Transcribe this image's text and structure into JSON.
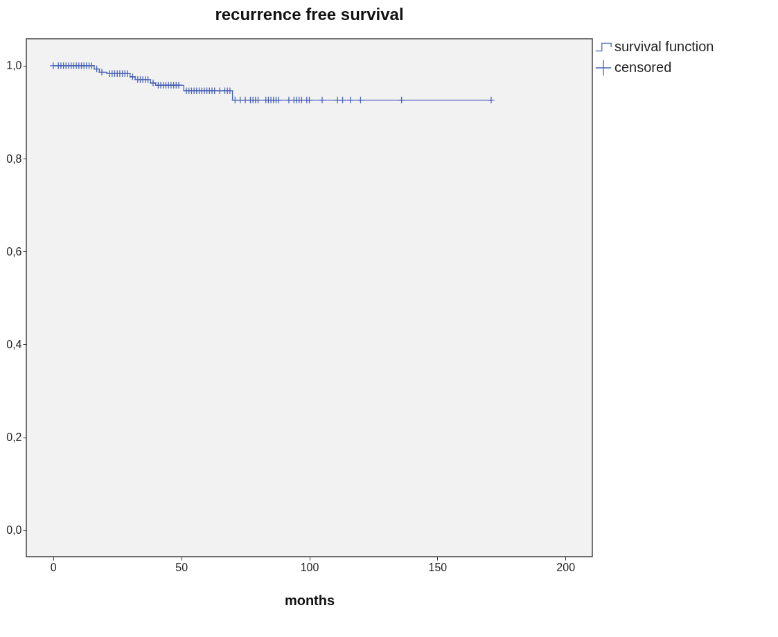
{
  "chart_data": {
    "type": "step",
    "title": "recurrence free survival",
    "xlabel": "months",
    "xlim": [
      -10.5,
      210.5
    ],
    "xticks": [
      0,
      50,
      100,
      150,
      200
    ],
    "ylim": [
      -0.057,
      1.058
    ],
    "yticks": [
      {
        "value": 0,
        "label": "0,0"
      },
      {
        "value": 0.2,
        "label": "0,2"
      },
      {
        "value": 0.4,
        "label": "0,4"
      },
      {
        "value": 0.6,
        "label": "0,6"
      },
      {
        "value": 0.8,
        "label": "0,8"
      },
      {
        "value": 1,
        "label": "1,0"
      }
    ],
    "legend": "top right",
    "line_style": "solid",
    "series": [
      {
        "name": "survival function",
        "type": "step",
        "color": "#4a64b8",
        "x": [
          0,
          16,
          18,
          21,
          30,
          32,
          38,
          40,
          51,
          70,
          171
        ],
        "values": [
          1,
          0.993,
          0.986,
          0.983,
          0.976,
          0.97,
          0.963,
          0.958,
          0.946,
          0.926,
          0.926
        ]
      },
      {
        "name": "censored",
        "type": "scatter",
        "color": "#4a64b8",
        "marker": "cross",
        "x": [
          0,
          2,
          3,
          4,
          5,
          6,
          7,
          8,
          9,
          10,
          11,
          12,
          13,
          14,
          15,
          17,
          19,
          22,
          23,
          24,
          25,
          26,
          27,
          28,
          29,
          31,
          33,
          34,
          35,
          36,
          37,
          39,
          41,
          42,
          43,
          44,
          45,
          46,
          47,
          48,
          49,
          52,
          53,
          54,
          55,
          56,
          57,
          58,
          59,
          60,
          61,
          62,
          63,
          65,
          67,
          68,
          69,
          71,
          73,
          75,
          77,
          78,
          79,
          80,
          83,
          84,
          85,
          86,
          87,
          88,
          92,
          94,
          95,
          96,
          97,
          99,
          100,
          105,
          111,
          113,
          116,
          120,
          136,
          171
        ],
        "values": [
          1,
          1,
          1,
          1,
          1,
          1,
          1,
          1,
          1,
          1,
          1,
          1,
          1,
          1,
          1,
          0.993,
          0.986,
          0.983,
          0.983,
          0.983,
          0.983,
          0.983,
          0.983,
          0.983,
          0.983,
          0.976,
          0.97,
          0.97,
          0.97,
          0.97,
          0.97,
          0.963,
          0.958,
          0.958,
          0.958,
          0.958,
          0.958,
          0.958,
          0.958,
          0.958,
          0.958,
          0.946,
          0.946,
          0.946,
          0.946,
          0.946,
          0.946,
          0.946,
          0.946,
          0.946,
          0.946,
          0.946,
          0.946,
          0.946,
          0.946,
          0.946,
          0.946,
          0.926,
          0.926,
          0.926,
          0.926,
          0.926,
          0.926,
          0.926,
          0.926,
          0.926,
          0.926,
          0.926,
          0.926,
          0.926,
          0.926,
          0.926,
          0.926,
          0.926,
          0.926,
          0.926,
          0.926,
          0.926,
          0.926,
          0.926,
          0.926,
          0.926,
          0.926,
          0.926
        ]
      }
    ]
  }
}
